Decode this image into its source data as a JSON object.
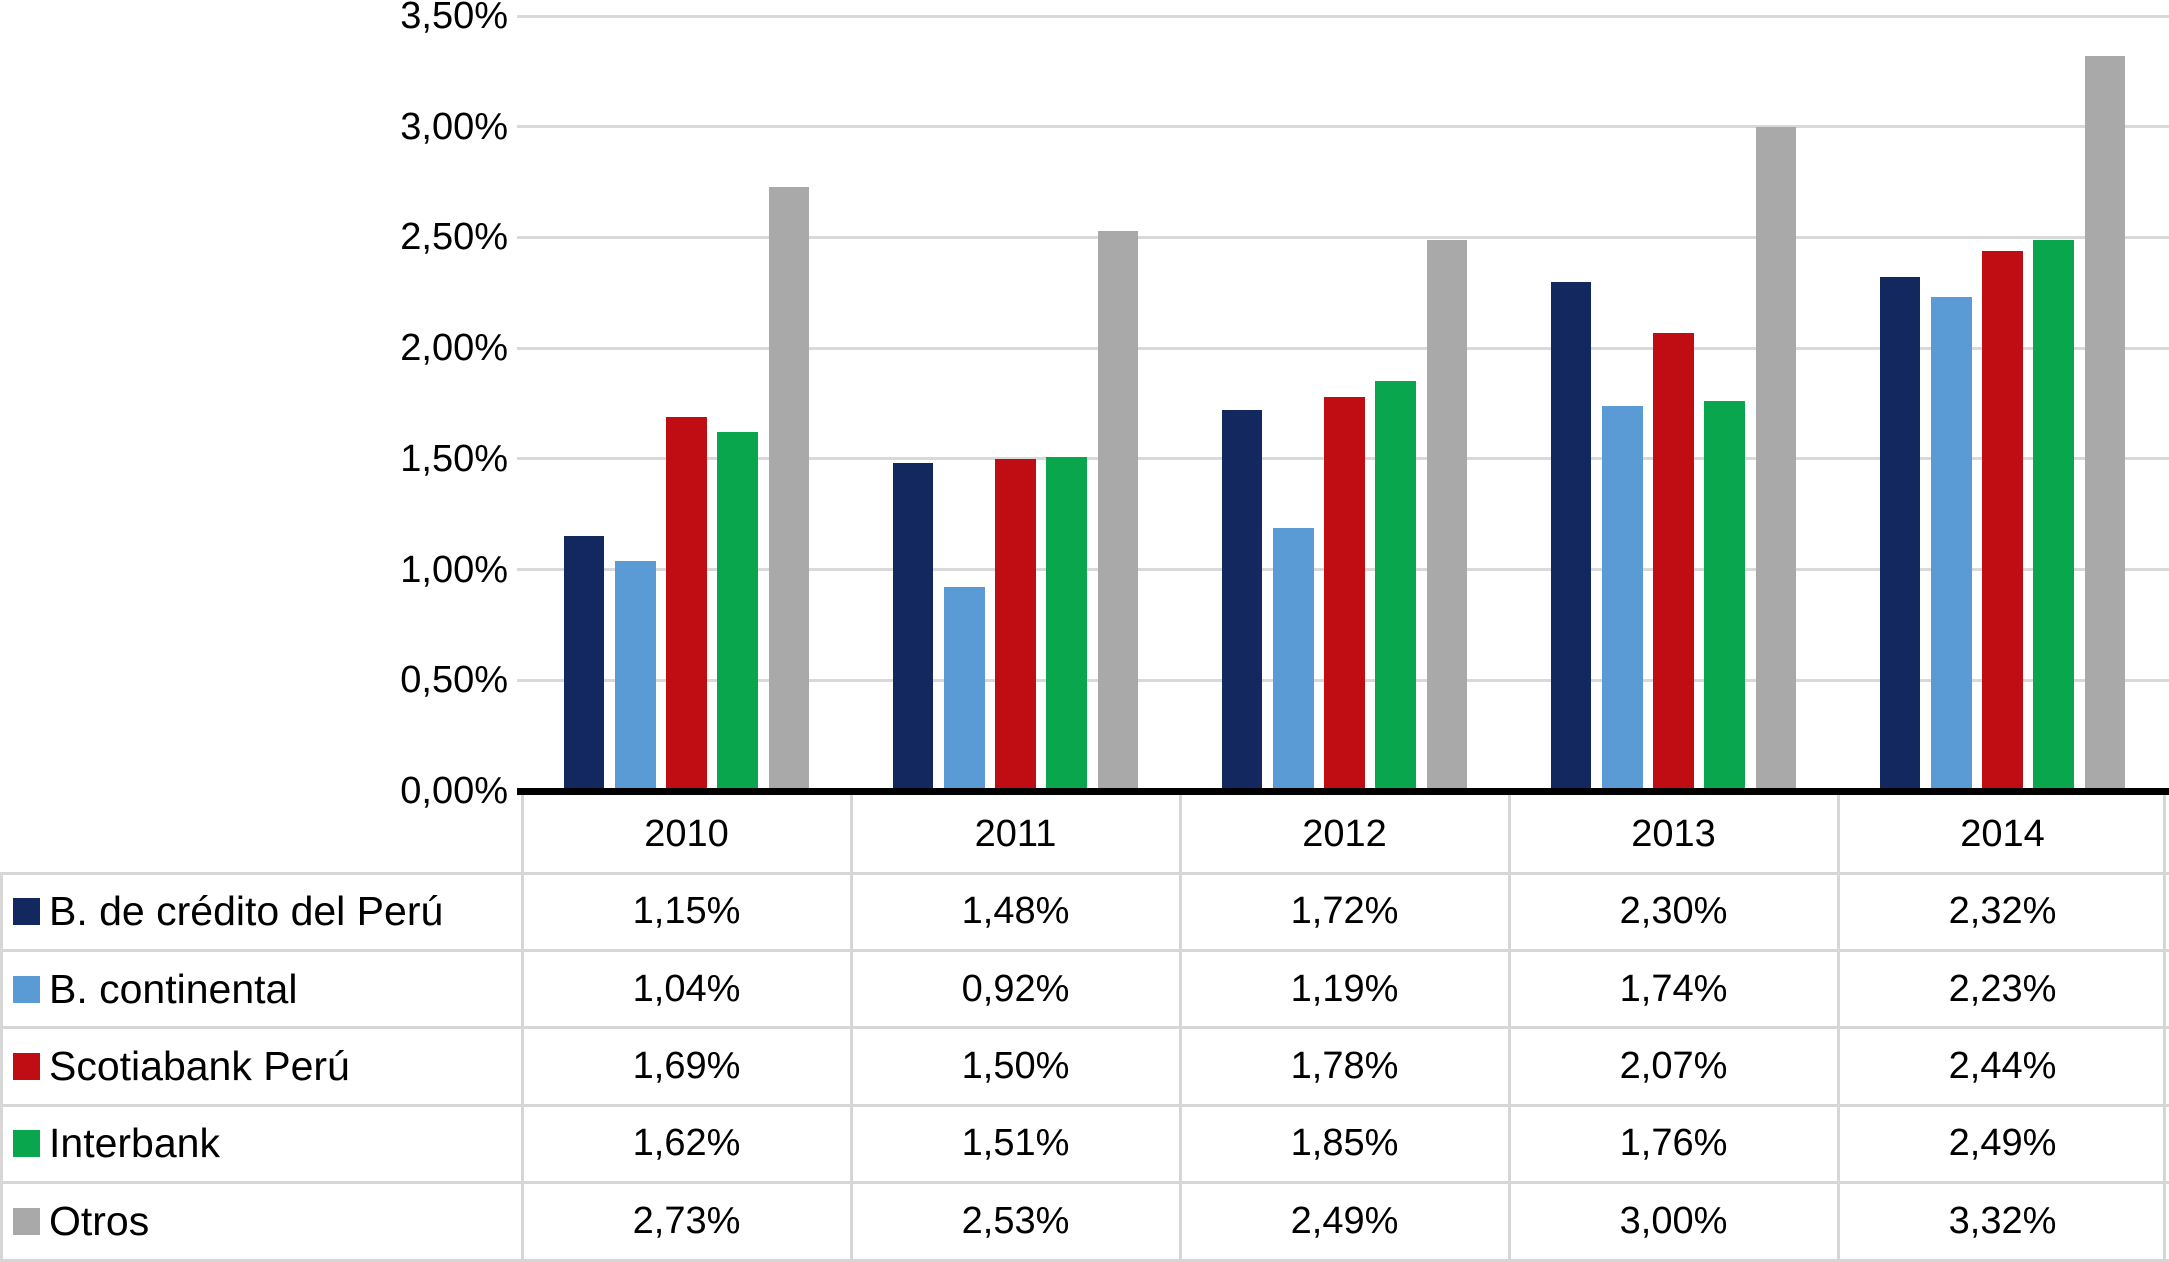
{
  "chart_data": {
    "type": "bar",
    "title": "",
    "categories": [
      "2010",
      "2011",
      "2012",
      "2013",
      "2014"
    ],
    "series": [
      {
        "name": "B. de crédito del Perú",
        "color": "#12285f",
        "values": [
          1.15,
          1.48,
          1.72,
          2.3,
          2.32
        ],
        "formatted": [
          "1,15%",
          "1,48%",
          "1,72%",
          "2,30%",
          "2,32%"
        ]
      },
      {
        "name": "B. continental",
        "color": "#5b9bd5",
        "values": [
          1.04,
          0.92,
          1.19,
          1.74,
          2.23
        ],
        "formatted": [
          "1,04%",
          "0,92%",
          "1,19%",
          "1,74%",
          "2,23%"
        ]
      },
      {
        "name": "Scotiabank Perú",
        "color": "#c00d13",
        "values": [
          1.69,
          1.5,
          1.78,
          2.07,
          2.44
        ],
        "formatted": [
          "1,69%",
          "1,50%",
          "1,78%",
          "2,07%",
          "2,44%"
        ]
      },
      {
        "name": "Interbank",
        "color": "#0aa64e",
        "values": [
          1.62,
          1.51,
          1.85,
          1.76,
          2.49
        ],
        "formatted": [
          "1,62%",
          "1,51%",
          "1,85%",
          "1,76%",
          "2,49%"
        ]
      },
      {
        "name": "Otros",
        "color": "#a9a9a9",
        "values": [
          2.73,
          2.53,
          2.49,
          3.0,
          3.32
        ],
        "formatted": [
          "2,73%",
          "2,53%",
          "2,49%",
          "3,00%",
          "3,32%"
        ]
      }
    ],
    "y_axis": {
      "min": 0,
      "max": 3.5,
      "step": 0.5,
      "tick_labels": [
        "0,00%",
        "0,50%",
        "1,00%",
        "1,50%",
        "2,00%",
        "2,50%",
        "3,00%",
        "3,50%"
      ]
    },
    "grid": true,
    "legend_position": "table-left",
    "colors": {
      "gridline": "#d9d9d9",
      "axis": "#000000",
      "table_border": "#d6d6d6",
      "background": "#ffffff"
    }
  }
}
